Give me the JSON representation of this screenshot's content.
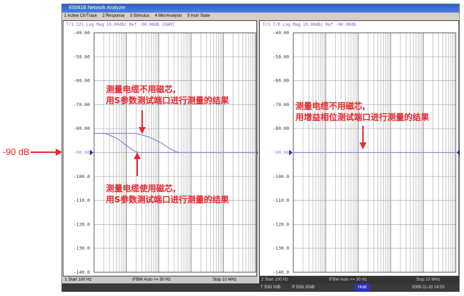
{
  "window": {
    "title": "E5061B Network Analyzer"
  },
  "menu": [
    "1 Active Ch/Trace",
    "2 Response",
    "3 Stimulus",
    "4 Mkr/Analysis",
    "5 Instr State"
  ],
  "colors": {
    "trace": "#8a8ad8",
    "annotation": "#e8262c",
    "grid": "#b0b0b0"
  },
  "reference_label": "-90 dB",
  "left_panel": {
    "header": "Tr1 S21 Log Mag 10.00dB/ Ref -90.00dB [DAM]",
    "status": {
      "start": "1  Start 100 Hz",
      "ifbw": "IFBW Auto <= 30 Hz",
      "stop": "Stop 10 MHz"
    },
    "annotations": [
      "测量电缆不用磁芯,\n用S参数测试端口进行测量的结果",
      "测量电缆使用磁芯,\n用S参数测试端口进行测量的结果"
    ]
  },
  "right_panel": {
    "header": "Tr1 T/R Log Mag 10.00dB/ Ref -90.00dB",
    "status": {
      "start": "2  Start 100 Hz",
      "ifbw": "IFBW Auto <= 30 Hz",
      "stop": "Stop 10 MHz"
    },
    "annotations": [
      "测量电缆不用磁芯,\n用增益相位测试端口进行测量的结果"
    ]
  },
  "bottom_bar": {
    "t": "T 50Ω 0dB",
    "r": "R 50Ω 20dB",
    "hold": "Hold",
    "datetime": "2009-11-10 14:55"
  },
  "chart_data": [
    {
      "type": "line",
      "xscale": "log",
      "xlim": [
        100,
        10000000
      ],
      "ylim": [
        -140,
        -40
      ],
      "yticks": [
        "-40.00",
        "-50.00",
        "-60.00",
        "-70.00",
        "-80.00",
        "-90.00",
        "-100.0",
        "-110.0",
        "-120.0",
        "-130.0",
        "-140.0"
      ],
      "grid": true,
      "series": [
        {
          "x": [
            100,
            2000,
            5000,
            12000,
            25000,
            40000,
            10000000
          ],
          "y": [
            -82,
            -82,
            -83.5,
            -86,
            -88.8,
            -90,
            -90
          ]
        },
        {
          "x": [
            100,
            220,
            500,
            1000,
            1800,
            2500,
            10000000
          ],
          "y": [
            -82,
            -82,
            -84,
            -87,
            -89.5,
            -90,
            -90
          ]
        }
      ]
    },
    {
      "type": "line",
      "xscale": "log",
      "xlim": [
        100,
        10000000
      ],
      "ylim": [
        -140,
        -40
      ],
      "yticks": [
        "-40.00",
        "-50.00",
        "-60.00",
        "-70.00",
        "-80.00",
        "-90.00",
        "-100.0",
        "-110.0",
        "-120.0",
        "-130.0",
        "-140.0"
      ],
      "grid": true,
      "series": [
        {
          "x": [
            100,
            10000000
          ],
          "y": [
            -90,
            -90
          ]
        }
      ]
    }
  ]
}
